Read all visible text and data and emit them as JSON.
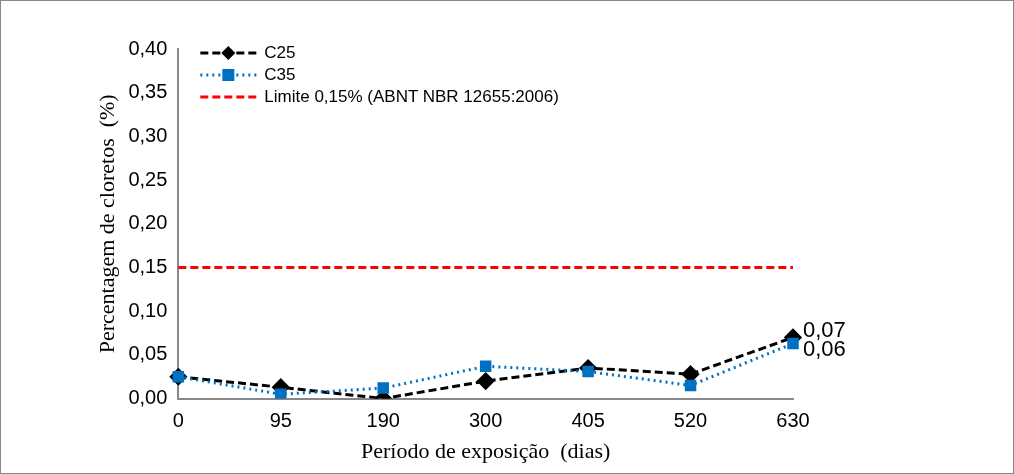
{
  "chart_data": {
    "type": "line",
    "xlabel": "Período de exposição  (dias)",
    "ylabel": "Percentagem de cloretos  (%)",
    "categories": [
      "0",
      "95",
      "190",
      "300",
      "405",
      "520",
      "630"
    ],
    "series": [
      {
        "name": "C25",
        "color": "#000000",
        "marker": "diamond",
        "line_style": "dashed",
        "values": [
          0.025,
          0.013,
          0,
          0.02,
          0.035,
          0.028,
          0.07
        ],
        "value_labels": [
          null,
          null,
          null,
          null,
          null,
          null,
          "0,07"
        ]
      },
      {
        "name": "C35",
        "color": "#0070c0",
        "marker": "square",
        "line_style": "dotted",
        "values": [
          0.025,
          0.005,
          0.012,
          0.037,
          0.031,
          0.015,
          0.063
        ],
        "value_labels": [
          null,
          null,
          null,
          null,
          null,
          null,
          "0,06"
        ]
      },
      {
        "name": "Limite 0,15% (ABNT NBR 12655:2006)",
        "color": "#ff0000",
        "marker": "none",
        "line_style": "dashed",
        "values": [
          0.15,
          0.15,
          0.15,
          0.15,
          0.15,
          0.15,
          0.15
        ]
      }
    ],
    "ylim": [
      0,
      0.4
    ],
    "yticks": [
      {
        "value": 0,
        "label": "0,00"
      },
      {
        "value": 0.05,
        "label": "0,05"
      },
      {
        "value": 0.1,
        "label": "0,10"
      },
      {
        "value": 0.15,
        "label": "0,15"
      },
      {
        "value": 0.2,
        "label": "0,20"
      },
      {
        "value": 0.25,
        "label": "0,25"
      },
      {
        "value": 0.3,
        "label": "0,30"
      },
      {
        "value": 0.35,
        "label": "0,35"
      },
      {
        "value": 0.4,
        "label": "0,40"
      }
    ],
    "grid": false,
    "legend": "top left"
  }
}
